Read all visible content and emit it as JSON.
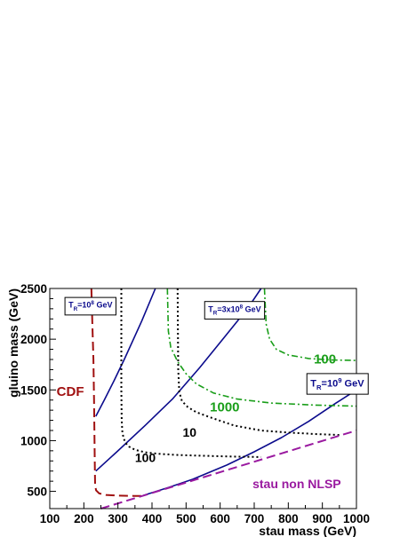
{
  "chart_data": {
    "type": "line",
    "xlabel": "stau mass (GeV)",
    "ylabel": "gluino mass (GeV)",
    "xlim": [
      100,
      1000
    ],
    "ylim": [
      330,
      2500
    ],
    "x_ticks": [
      100,
      200,
      300,
      400,
      500,
      600,
      700,
      800,
      900,
      1000
    ],
    "y_ticks": [
      500,
      1000,
      1500,
      2000,
      2500
    ],
    "series": [
      {
        "group": "TR=10^8 GeV",
        "color": "#0b0b8c",
        "style": "solid",
        "x": [
          235,
          260,
          290,
          320,
          370,
          410
        ],
        "y": [
          1240,
          1400,
          1600,
          1810,
          2180,
          2500
        ]
      },
      {
        "group": "TR=3x10^8 GeV",
        "color": "#0b0b8c",
        "style": "solid",
        "x": [
          235,
          300,
          380,
          460,
          540,
          620,
          680,
          720
        ],
        "y": [
          700,
          900,
          1150,
          1410,
          1720,
          2050,
          2300,
          2500
        ]
      },
      {
        "group": "TR=10^9 GeV",
        "color": "#0b0b8c",
        "style": "solid",
        "x": [
          375,
          450,
          520,
          620,
          700,
          780,
          860,
          940,
          1000
        ],
        "y": [
          460,
          540,
          620,
          760,
          890,
          1030,
          1190,
          1370,
          1500
        ]
      },
      {
        "group": "100",
        "color": "#000000",
        "style": "dotted",
        "x": [
          310,
          310,
          311,
          313,
          317,
          323,
          333,
          350,
          380,
          420,
          480,
          560,
          650,
          720
        ],
        "y": [
          2500,
          1500,
          1200,
          1080,
          1020,
          975,
          940,
          910,
          885,
          870,
          858,
          850,
          842,
          838
        ]
      },
      {
        "group": "10",
        "color": "#000000",
        "style": "dotted",
        "x": [
          475,
          477,
          480,
          488,
          505,
          530,
          570,
          640,
          720,
          800,
          880,
          950
        ],
        "y": [
          2500,
          1700,
          1480,
          1390,
          1330,
          1280,
          1230,
          1150,
          1100,
          1080,
          1065,
          1055
        ]
      },
      {
        "group": "100 (green)",
        "color": "#1a9e1a",
        "style": "dashdot",
        "x": [
          730,
          735,
          745,
          765,
          800,
          860,
          930,
          1000
        ],
        "y": [
          2500,
          2150,
          2000,
          1900,
          1845,
          1810,
          1795,
          1790
        ]
      },
      {
        "group": "1000",
        "color": "#1a9e1a",
        "style": "dashdot",
        "x": [
          445,
          448,
          455,
          475,
          500,
          530,
          580,
          650,
          750,
          880,
          1000
        ],
        "y": [
          2500,
          2080,
          1920,
          1780,
          1660,
          1560,
          1470,
          1410,
          1370,
          1350,
          1340
        ]
      },
      {
        "group": "CDF",
        "color": "#a01010",
        "style": "dashed",
        "x": [
          222,
          225,
          228,
          230,
          231,
          232,
          233,
          236,
          245,
          265,
          300,
          345,
          375
        ],
        "y": [
          2500,
          2150,
          1800,
          1400,
          1100,
          800,
          560,
          510,
          480,
          465,
          458,
          455,
          455
        ]
      },
      {
        "group": "stau non NLSP",
        "color": "#9a1aa0",
        "style": "dashed",
        "x": [
          250,
          1000
        ],
        "y": [
          330,
          1100
        ]
      }
    ],
    "annotations": [
      {
        "text": "CDF",
        "color": "#a01010",
        "size": 15,
        "x": 120,
        "y": 1440
      },
      {
        "text": "100",
        "color": "#1a9e1a",
        "size": 15,
        "x": 875,
        "y": 1760
      },
      {
        "text": "1000",
        "color": "#1a9e1a",
        "size": 15,
        "x": 570,
        "y": 1290
      },
      {
        "text": "10",
        "color": "#000000",
        "size": 14,
        "x": 490,
        "y": 1040
      },
      {
        "text": "100",
        "color": "#000000",
        "size": 14,
        "x": 350,
        "y": 790
      },
      {
        "text": "stau non NLSP",
        "color": "#9a1aa0",
        "size": 14,
        "x": 695,
        "y": 530
      }
    ],
    "boxed_labels": [
      {
        "text": "T",
        "sub": "R",
        "rest": "=10",
        "sup": "8",
        "tail": " GeV",
        "x": 155,
        "y": 2310,
        "size": 9
      },
      {
        "text": "T",
        "sub": "R",
        "rest": "=3x10",
        "sup": "8",
        "tail": " GeV",
        "x": 565,
        "y": 2270,
        "size": 9
      },
      {
        "text": "T",
        "sub": "R",
        "rest": "=10",
        "sup": "9",
        "tail": " GeV",
        "x": 865,
        "y": 1535,
        "size": 11
      }
    ]
  }
}
